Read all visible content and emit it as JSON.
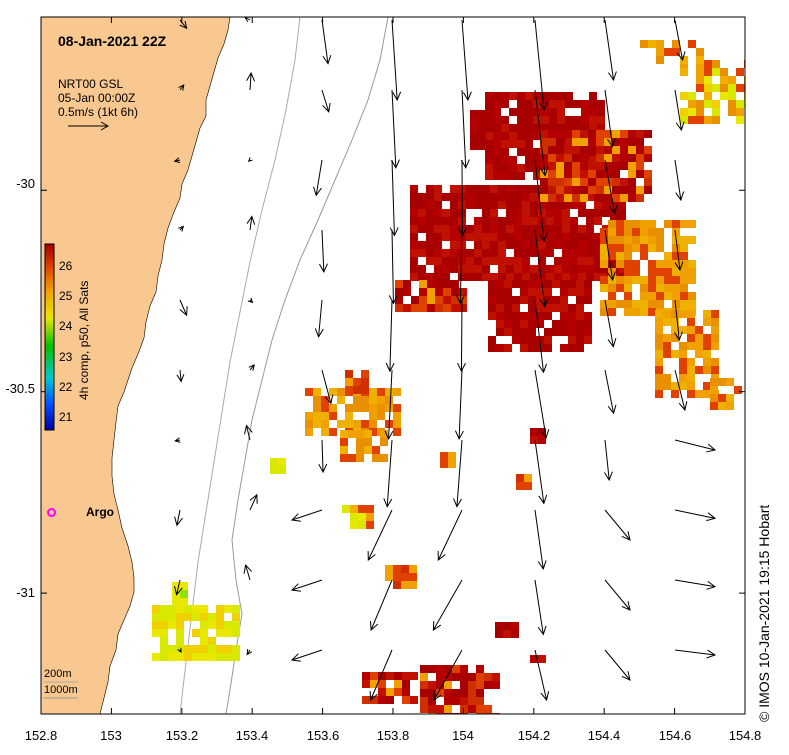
{
  "title": "08-Jan-2021 22Z",
  "info": {
    "line1": "NRT00 GSL",
    "line2": "05-Jan 00:00Z",
    "line3": "0.5m/s (1kt 6h)"
  },
  "colorbar": {
    "label": "4h comp, p50, All Sats",
    "ticks": [
      "26",
      "25",
      "24",
      "23",
      "22",
      "21"
    ],
    "vmin": 20.7,
    "vmax": 26.4
  },
  "x_ticks": [
    "152.8",
    "153",
    "153.2",
    "153.4",
    "153.6",
    "153.8",
    "154",
    "154.2",
    "154.4",
    "154.6",
    "154.8"
  ],
  "y_ticks": [
    "-30",
    "-30.5",
    "-31"
  ],
  "extent": {
    "lon_min": 152.8,
    "lon_max": 154.8,
    "lat_max": -29.57,
    "lat_min": -31.3
  },
  "argo": {
    "label": "Argo",
    "lon": 152.83,
    "lat": -30.8,
    "color": "#ff00ff"
  },
  "depth_legend": {
    "shallow": "200m",
    "deep": "1000m"
  },
  "credit": "© IMOS 10-Jan-2021 19:15 Hobart",
  "colors": {
    "land": "#f8c890",
    "sst_hot": "#a80000",
    "sst_warm": "#e04000",
    "sst_orange": "#f0a000",
    "sst_yellow": "#e8e800"
  }
}
